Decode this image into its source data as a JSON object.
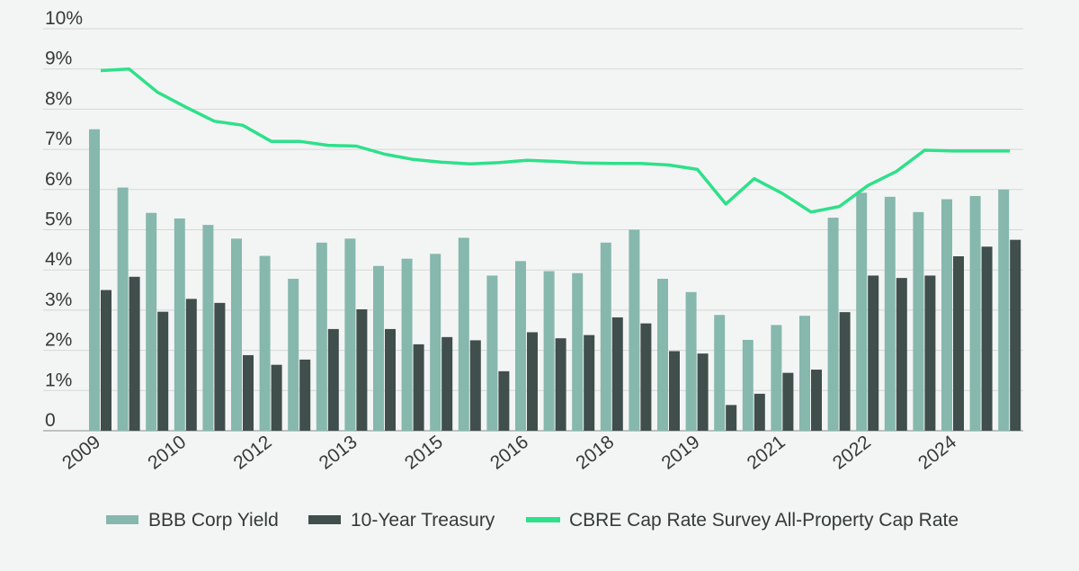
{
  "chart_data": {
    "type": "bar",
    "title": "",
    "xlabel": "",
    "ylabel": "",
    "ylim": [
      0,
      10
    ],
    "y_ticks": [
      "0",
      "1%",
      "2%",
      "3%",
      "4%",
      "5%",
      "6%",
      "7%",
      "8%",
      "9%",
      "10%"
    ],
    "x_tick_labels": [
      "2009",
      "2010",
      "2012",
      "2013",
      "2015",
      "2016",
      "2018",
      "2019",
      "2021",
      "2022",
      "2024"
    ],
    "periods": 33,
    "grid": true,
    "legend_position": "bottom",
    "series": [
      {
        "name": "BBB Corp Yield",
        "kind": "bar",
        "color": "#86b8ad",
        "values": [
          7.5,
          6.05,
          5.42,
          5.28,
          5.12,
          4.78,
          4.35,
          3.78,
          4.68,
          4.78,
          4.1,
          4.28,
          4.4,
          4.8,
          3.86,
          4.22,
          3.97,
          3.92,
          4.68,
          5.0,
          3.78,
          3.45,
          2.88,
          2.26,
          2.63,
          2.86,
          5.3,
          5.92,
          5.82,
          5.44,
          5.76,
          5.84,
          6.0
        ]
      },
      {
        "name": "10-Year Treasury",
        "kind": "bar",
        "color": "#404e4c",
        "values": [
          3.5,
          3.83,
          2.96,
          3.28,
          3.18,
          1.88,
          1.64,
          1.77,
          2.53,
          3.02,
          2.53,
          2.15,
          2.33,
          2.25,
          1.48,
          2.45,
          2.3,
          2.38,
          2.82,
          2.67,
          1.98,
          1.92,
          0.64,
          0.92,
          1.44,
          1.52,
          2.95,
          3.86,
          3.8,
          3.86,
          4.34,
          4.58,
          4.75
        ]
      },
      {
        "name": "CBRE Cap Rate Survey All-Property Cap Rate",
        "kind": "line",
        "color": "#2ee08a",
        "values": [
          8.96,
          9.0,
          8.42,
          8.05,
          7.7,
          7.6,
          7.2,
          7.2,
          7.1,
          7.08,
          6.88,
          6.75,
          6.68,
          6.64,
          6.67,
          6.73,
          6.7,
          6.66,
          6.65,
          6.65,
          6.61,
          6.5,
          5.64,
          6.27,
          5.9,
          5.44,
          5.58,
          6.1,
          6.45,
          6.98,
          6.96,
          6.96,
          6.96
        ]
      }
    ]
  }
}
